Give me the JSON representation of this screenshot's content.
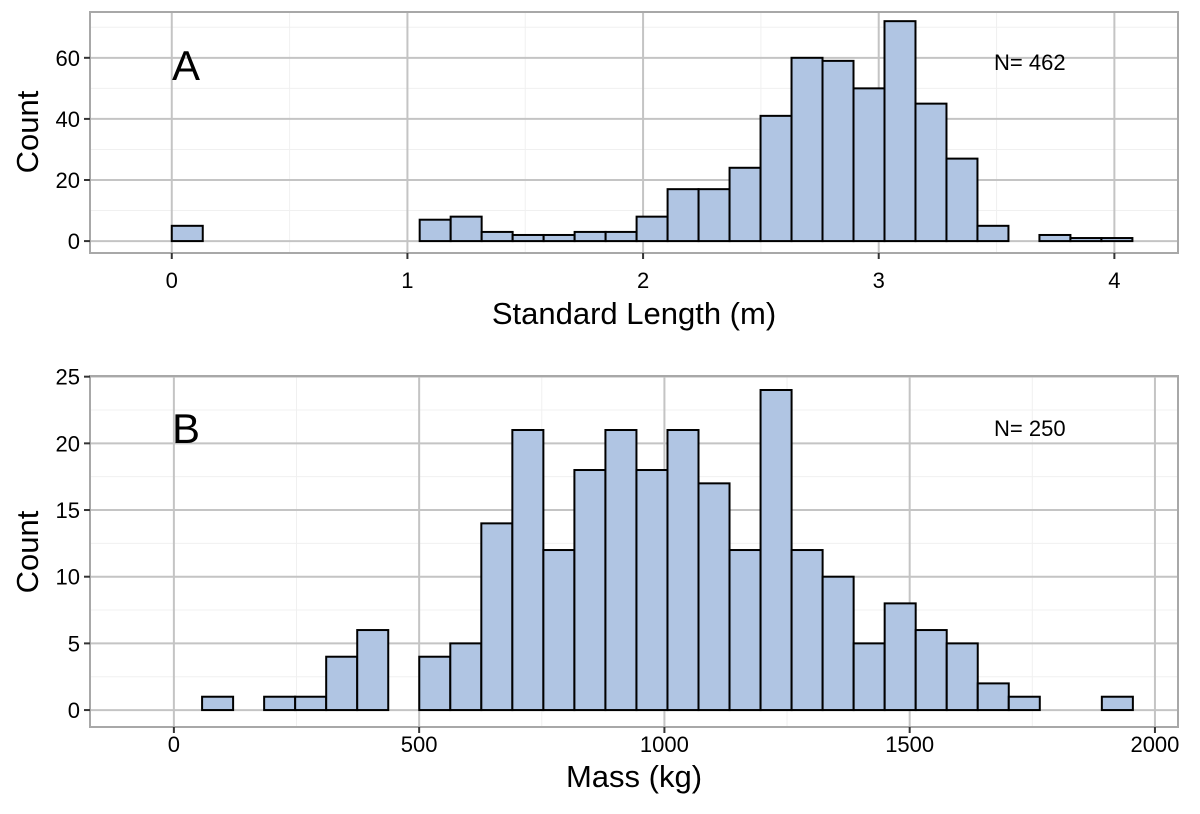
{
  "colors": {
    "bar_fill": "#b0c5e3",
    "bar_stroke": "#000000",
    "grid_major": "#c4c4c4",
    "grid_minor": "#f0f0f0",
    "panel_border": "#a8a8a8"
  },
  "chart_data": [
    {
      "type": "bar",
      "panel_label": "A",
      "annotation": "N= 462",
      "xlabel": "Standard Length (m)",
      "ylabel": "Count",
      "bin_start": -0.1315,
      "bin_width": 0.1315,
      "counts": [
        0,
        5,
        0,
        0,
        0,
        0,
        0,
        0,
        0,
        7,
        8,
        3,
        2,
        2,
        3,
        3,
        8,
        17,
        17,
        24,
        41,
        60,
        59,
        50,
        72,
        45,
        27,
        5,
        0,
        2,
        1,
        1
      ],
      "xlim": [
        -0.347,
        4.27
      ],
      "ylim": [
        -3.9,
        75
      ],
      "xticks": [
        0,
        1,
        2,
        3,
        4
      ],
      "xtick_labels": [
        "0",
        "1",
        "2",
        "3",
        "4"
      ],
      "yticks": [
        0,
        20,
        40,
        60
      ],
      "ytick_labels": [
        "0",
        "20",
        "40",
        "60"
      ],
      "grid": true
    },
    {
      "type": "bar",
      "panel_label": "B",
      "annotation": "N= 250",
      "xlabel": "Mass (kg)",
      "ylabel": "Count",
      "bin_start": -69,
      "bin_width": 63.25,
      "counts": [
        0,
        0,
        1,
        0,
        1,
        1,
        4,
        6,
        0,
        4,
        5,
        14,
        21,
        12,
        18,
        21,
        18,
        21,
        17,
        12,
        24,
        12,
        10,
        5,
        8,
        6,
        5,
        2,
        1,
        0,
        0,
        1
      ],
      "xlim": [
        -171,
        2047
      ],
      "ylim": [
        -1.27,
        25.05
      ],
      "xticks": [
        0,
        500,
        1000,
        1500,
        2000
      ],
      "xtick_labels": [
        "0",
        "500",
        "1000",
        "1500",
        "2000"
      ],
      "yticks": [
        0,
        5,
        10,
        15,
        20,
        25
      ],
      "ytick_labels": [
        "0",
        "5",
        "10",
        "15",
        "20",
        "25"
      ],
      "grid": true
    }
  ]
}
